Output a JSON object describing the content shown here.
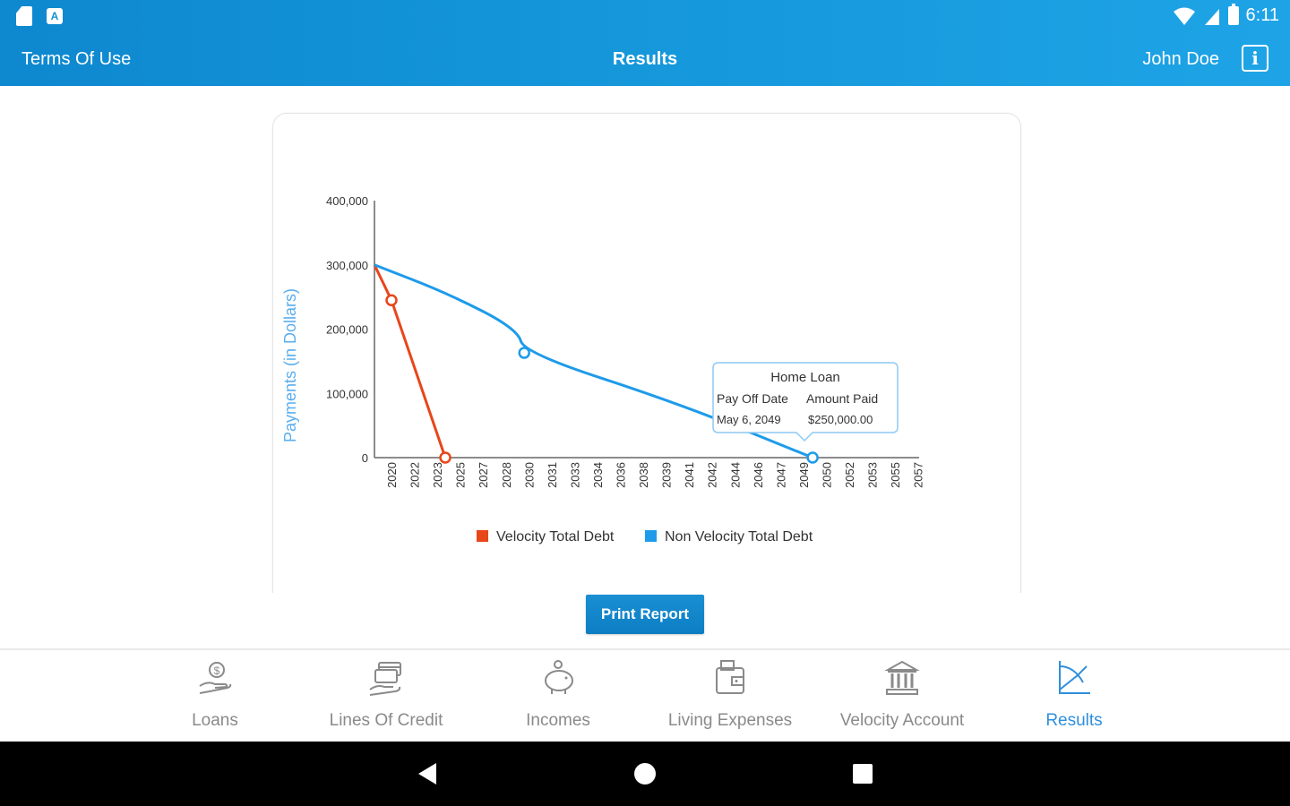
{
  "status_bar": {
    "time": "6:11"
  },
  "header": {
    "terms_label": "Terms Of Use",
    "title": "Results",
    "user_name": "John Doe",
    "info_label": "i"
  },
  "chart_data": {
    "type": "line",
    "ylabel": "Payments (in Dollars)",
    "ylim": [
      0,
      400000
    ],
    "y_ticks": [
      "400,000",
      "300,000",
      "200,000",
      "100,000",
      "0"
    ],
    "x_ticks": [
      "2020",
      "2022",
      "2023",
      "2025",
      "2027",
      "2028",
      "2030",
      "2031",
      "2033",
      "2034",
      "2036",
      "2038",
      "2039",
      "2041",
      "2042",
      "2044",
      "2046",
      "2047",
      "2049",
      "2050",
      "2052",
      "2053",
      "2055",
      "2057"
    ],
    "series": [
      {
        "name": "Velocity Total Debt",
        "color": "#e8461b",
        "points": [
          [
            2019.25,
            300000
          ],
          [
            2020.0,
            245000
          ],
          [
            2023.7,
            0
          ]
        ],
        "markers": [
          [
            2020.0,
            245000
          ],
          [
            2023.7,
            0
          ]
        ]
      },
      {
        "name": "Non Velocity Total Debt",
        "color": "#1e9bea",
        "points": [
          [
            2019.25,
            300000
          ],
          [
            2024,
            255000
          ],
          [
            2029,
            200000
          ],
          [
            2029.6,
            163000
          ],
          [
            2040,
            85000
          ],
          [
            2049.4,
            0
          ]
        ],
        "markers": [
          [
            2029.6,
            163000
          ],
          [
            2049.4,
            0
          ]
        ]
      }
    ],
    "legend": [
      "Velocity Total Debt",
      "Non Velocity Total Debt"
    ],
    "legend_position": "bottom",
    "tooltip": {
      "title": "Home Loan",
      "col1_header": "Pay Off Date",
      "col2_header": "Amount Paid",
      "col1_value": "May 6, 2049",
      "col2_value": "$250,000.00"
    }
  },
  "actions": {
    "print_label": "Print Report"
  },
  "tabs": [
    {
      "label": "Loans",
      "icon": "hand-money-icon"
    },
    {
      "label": "Lines Of Credit",
      "icon": "credit-cards-icon"
    },
    {
      "label": "Incomes",
      "icon": "piggy-bank-icon"
    },
    {
      "label": "Living Expenses",
      "icon": "wallet-icon"
    },
    {
      "label": "Velocity Account",
      "icon": "bank-icon"
    },
    {
      "label": "Results",
      "icon": "chart-icon",
      "active": true
    }
  ],
  "colors": {
    "header": "#1699dc",
    "accent": "#2f8fdd",
    "velocity": "#e8461b",
    "non_velocity": "#1e9bea"
  }
}
